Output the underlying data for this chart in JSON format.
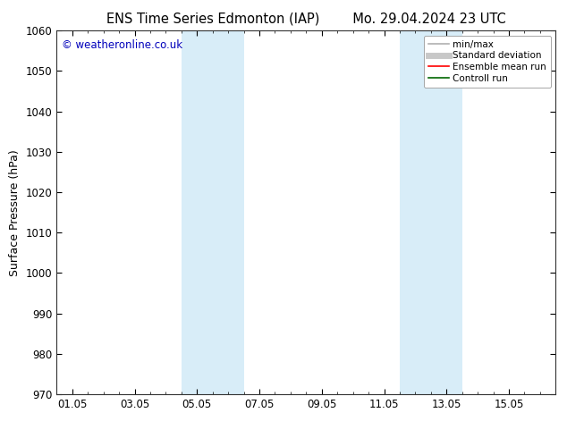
{
  "title_left": "ENS Time Series Edmonton (IAP)",
  "title_right": "Mo. 29.04.2024 23 UTC",
  "ylabel": "Surface Pressure (hPa)",
  "watermark": "© weatheronline.co.uk",
  "watermark_color": "#0000bb",
  "ylim": [
    970,
    1060
  ],
  "yticks": [
    970,
    980,
    990,
    1000,
    1010,
    1020,
    1030,
    1040,
    1050,
    1060
  ],
  "xtick_labels": [
    "01.05",
    "03.05",
    "05.05",
    "07.05",
    "09.05",
    "11.05",
    "13.05",
    "15.05"
  ],
  "xtick_positions": [
    0,
    2,
    4,
    6,
    8,
    10,
    12,
    14
  ],
  "xlim": [
    -0.5,
    15.5
  ],
  "shaded_bands": [
    {
      "x_start": 3.5,
      "x_end": 5.5,
      "color": "#d8edf8"
    },
    {
      "x_start": 10.5,
      "x_end": 12.5,
      "color": "#d8edf8"
    }
  ],
  "bg_color": "#ffffff",
  "legend_items": [
    {
      "label": "min/max",
      "color": "#b0b0b0",
      "lw": 1.2
    },
    {
      "label": "Standard deviation",
      "color": "#c8c8c8",
      "lw": 5
    },
    {
      "label": "Ensemble mean run",
      "color": "#ff0000",
      "lw": 1.2
    },
    {
      "label": "Controll run",
      "color": "#006600",
      "lw": 1.2
    }
  ],
  "title_fontsize": 10.5,
  "ylabel_fontsize": 9,
  "tick_fontsize": 8.5,
  "watermark_fontsize": 8.5,
  "legend_fontsize": 7.5
}
